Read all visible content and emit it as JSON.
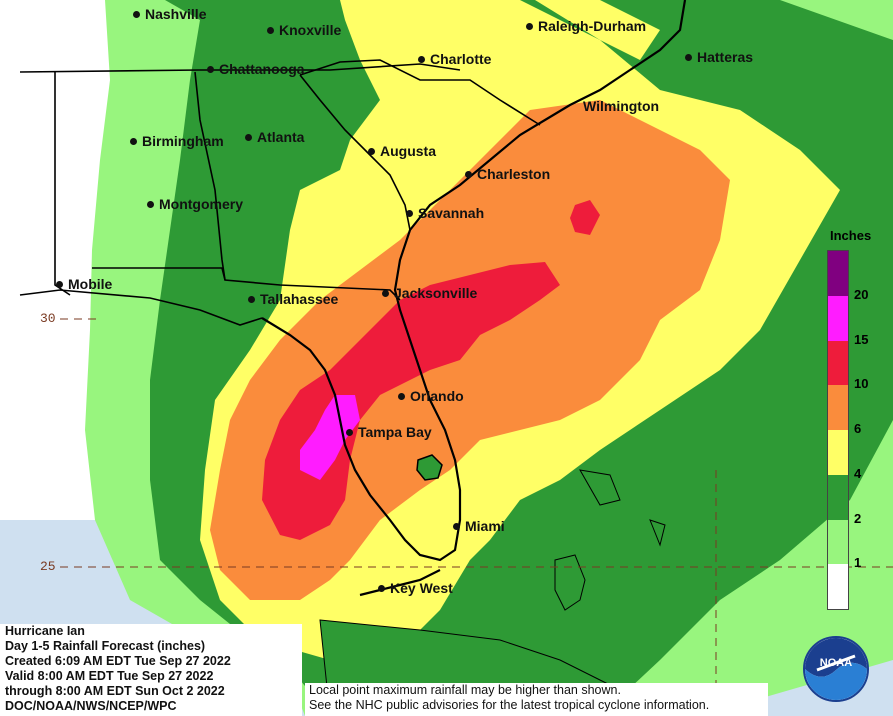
{
  "header": {
    "storm_name": "Hurricane Ian",
    "product": "Day 1-5 Rainfall Forecast (inches)",
    "created": "Created 6:09 AM EDT Tue Sep 27 2022",
    "valid": "Valid 8:00 AM EDT Tue Sep 27 2022",
    "through": "through 8:00 AM EDT Sun Oct 2 2022",
    "agency": "DOC/NOAA/NWS/NCEP/WPC"
  },
  "disclaimer": {
    "line1": "Local point maximum rainfall may be higher than shown.",
    "line2": "See the NHC public advisories for the latest tropical cyclone information."
  },
  "legend": {
    "title": "Inches",
    "levels": [
      {
        "label": "1",
        "color": "#ffffff"
      },
      {
        "label": "2",
        "color": "#98f57e"
      },
      {
        "label": "4",
        "color": "#2e9a35"
      },
      {
        "label": "6",
        "color": "#ffff66"
      },
      {
        "label": "10",
        "color": "#fa8c3c"
      },
      {
        "label": "15",
        "color": "#ee1c3b"
      },
      {
        "label": "20",
        "color": "#ff1cff"
      },
      {
        "label": "",
        "color": "#800080"
      }
    ]
  },
  "latitude_labels": {
    "lat30": "30",
    "lat25": "25"
  },
  "cities": {
    "nashville": "Nashville",
    "knoxville": "Knoxville",
    "raleigh": "Raleigh-Durham",
    "charlotte": "Charlotte",
    "hatteras": "Hatteras",
    "chattanooga": "Chattanooga",
    "wilmington": "Wilmington",
    "birmingham": "Birmingham",
    "atlanta": "Atlanta",
    "augusta": "Augusta",
    "charleston": "Charleston",
    "montgomery": "Montgomery",
    "savannah": "Savannah",
    "mobile": "Mobile",
    "tallahassee": "Tallahassee",
    "jacksonville": "Jacksonville",
    "orlando": "Orlando",
    "tampa": "Tampa Bay",
    "miami": "Miami",
    "keywest": "Key West"
  },
  "logo": {
    "text": "NOAA",
    "icon": "noaa-logo-icon"
  },
  "colors": {
    "ocean": "#cfe0f0",
    "land_none": "#ffffff",
    "light_green": "#98f57e",
    "dark_green": "#2e9a35",
    "yellow": "#ffff66",
    "orange": "#fa8c3c",
    "red": "#ee1c3b",
    "magenta": "#ff1cff"
  }
}
